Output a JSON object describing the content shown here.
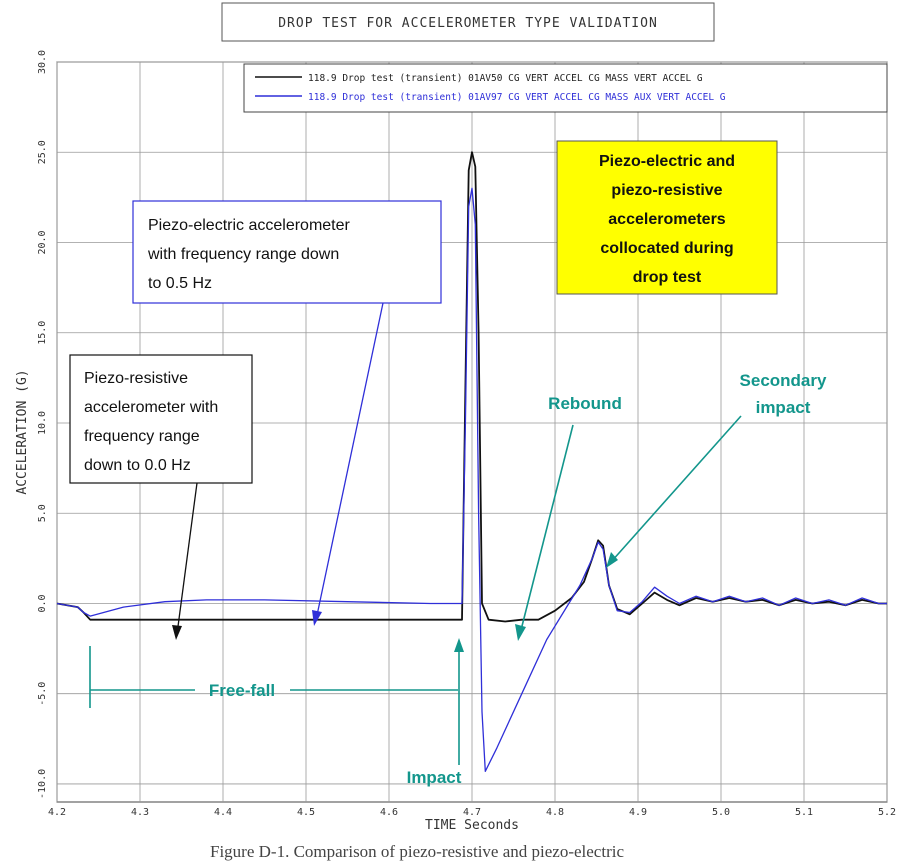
{
  "title": "DROP TEST FOR ACCELEROMETER TYPE VALIDATION",
  "caption": "Figure D-1. Comparison of piezo-resistive and piezo-electric",
  "colors": {
    "black_series": "#111111",
    "blue_series": "#2f2fd8",
    "annotation_teal": "#13968c",
    "highlight": "#ffff00",
    "grid": "#999999"
  },
  "annotations": {
    "piezo_electric_box": [
      "Piezo-electric accelerometer",
      "with frequency range down",
      "to 0.5 Hz"
    ],
    "piezo_resistive_box": [
      "Piezo-resistive",
      "accelerometer with",
      "frequency range",
      "down to 0.0 Hz"
    ],
    "yellow_box": [
      "Piezo-electric and",
      "piezo-resistive",
      "accelerometers",
      "collocated during",
      "drop test"
    ],
    "rebound": "Rebound",
    "secondary_impact": [
      "Secondary",
      "impact"
    ],
    "free_fall": "Free-fall",
    "impact": "Impact"
  },
  "chart_data": {
    "type": "line",
    "title": "DROP TEST FOR ACCELEROMETER TYPE VALIDATION",
    "xlabel": "TIME  Seconds",
    "ylabel": "ACCELERATION  (G)",
    "xlim": [
      4.2,
      5.2
    ],
    "ylim": [
      -11.0,
      30.0
    ],
    "xticks": [
      4.2,
      4.3,
      4.4,
      4.5,
      4.6,
      4.7,
      4.8,
      4.9,
      5.0,
      5.1,
      5.2
    ],
    "xtick_labels": [
      "4.2",
      "4.3",
      "4.4",
      "4.5",
      "4.6",
      "4.7",
      "4.8",
      "4.9",
      "5.0",
      "5.1",
      "5.2"
    ],
    "yticks": [
      -10,
      -5,
      0,
      5,
      10,
      15,
      20,
      25,
      30
    ],
    "ytick_labels": [
      "-10.0",
      "-5.0",
      "0.0",
      "5.0",
      "10.0",
      "15.0",
      "20.0",
      "25.0",
      "30.0"
    ],
    "grid": true,
    "legend_position": "top-right",
    "series": [
      {
        "name": "118.9 Drop test (transient) 01AV50 CG VERT ACCEL CG MASS VERT ACCEL G",
        "color": "#111111",
        "x": [
          4.2,
          4.225,
          4.232,
          4.24,
          4.3,
          4.4,
          4.5,
          4.6,
          4.688,
          4.692,
          4.696,
          4.7,
          4.704,
          4.708,
          4.712,
          4.72,
          4.74,
          4.76,
          4.78,
          4.8,
          4.82,
          4.835,
          4.845,
          4.852,
          4.858,
          4.865,
          4.875,
          4.89,
          4.905,
          4.92,
          4.935,
          4.95,
          4.97,
          4.99,
          5.01,
          5.03,
          5.05,
          5.07,
          5.09,
          5.11,
          5.13,
          5.15,
          5.17,
          5.19,
          5.2
        ],
        "values": [
          0.0,
          -0.2,
          -0.5,
          -0.9,
          -0.9,
          -0.9,
          -0.9,
          -0.9,
          -0.9,
          12.0,
          24.0,
          25.0,
          24.2,
          15.0,
          0.0,
          -0.9,
          -1.0,
          -0.9,
          -0.9,
          -0.4,
          0.3,
          1.2,
          2.5,
          3.5,
          3.2,
          1.0,
          -0.3,
          -0.6,
          0.0,
          0.6,
          0.2,
          -0.1,
          0.3,
          0.1,
          0.3,
          0.1,
          0.2,
          -0.1,
          0.2,
          0.0,
          0.1,
          -0.1,
          0.2,
          0.0,
          0.0
        ]
      },
      {
        "name": "118.9 Drop test (transient) 01AV97 CG VERT ACCEL CG MASS AUX VERT ACCEL G",
        "color": "#2f2fd8",
        "x": [
          4.2,
          4.225,
          4.232,
          4.24,
          4.28,
          4.33,
          4.38,
          4.45,
          4.55,
          4.65,
          4.688,
          4.692,
          4.696,
          4.7,
          4.704,
          4.708,
          4.712,
          4.716,
          4.73,
          4.76,
          4.79,
          4.81,
          4.83,
          4.845,
          4.852,
          4.858,
          4.865,
          4.875,
          4.89,
          4.905,
          4.92,
          4.935,
          4.95,
          4.97,
          4.99,
          5.01,
          5.03,
          5.05,
          5.07,
          5.09,
          5.11,
          5.13,
          5.15,
          5.17,
          5.19,
          5.2
        ],
        "values": [
          0.0,
          -0.2,
          -0.5,
          -0.7,
          -0.2,
          0.1,
          0.2,
          0.2,
          0.1,
          0.0,
          0.0,
          10.0,
          22.0,
          23.0,
          21.0,
          5.0,
          -6.0,
          -9.3,
          -8.0,
          -5.0,
          -2.0,
          -0.5,
          1.0,
          2.5,
          3.4,
          3.0,
          1.0,
          -0.4,
          -0.5,
          0.1,
          0.9,
          0.4,
          0.0,
          0.4,
          0.1,
          0.4,
          0.1,
          0.3,
          -0.1,
          0.3,
          0.0,
          0.2,
          -0.1,
          0.3,
          0.0,
          0.0
        ]
      }
    ]
  }
}
